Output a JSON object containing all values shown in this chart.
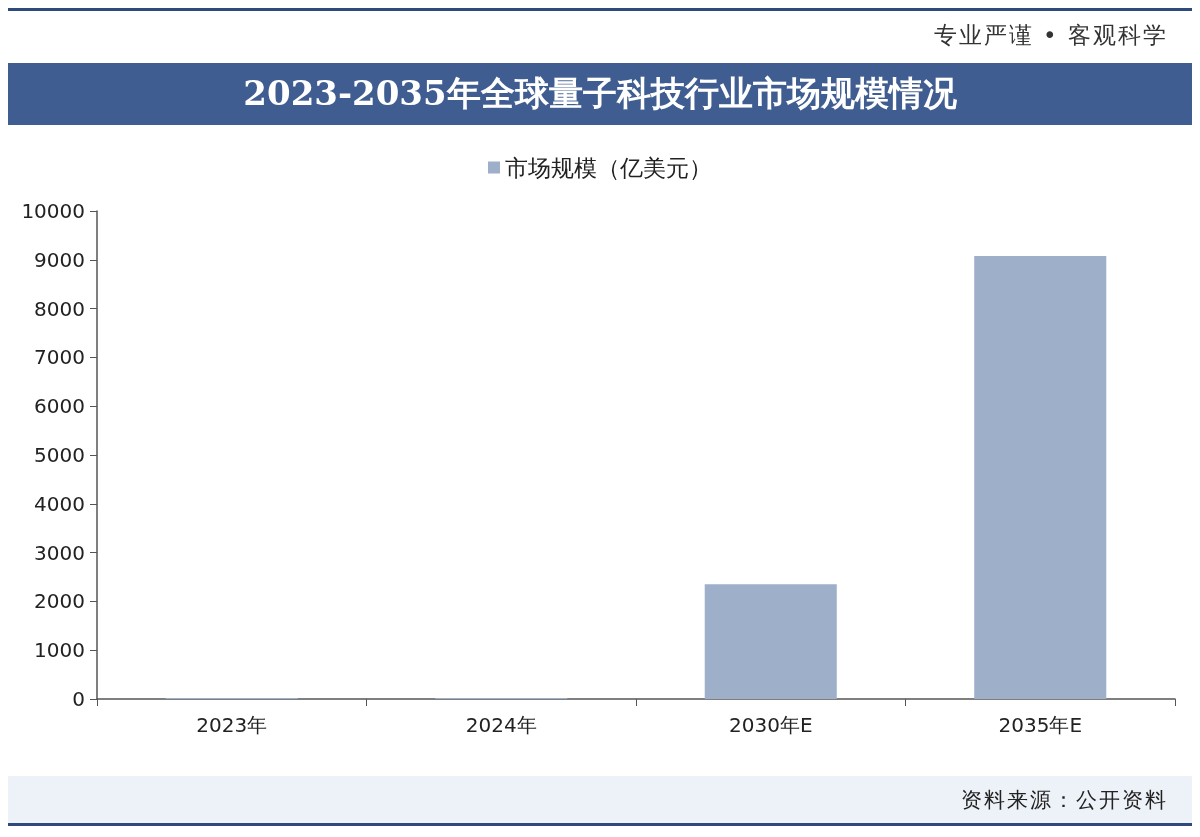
{
  "chart_data": {
    "type": "bar",
    "title": "2023-2035年全球量子科技行业市场规模情况",
    "categories": [
      "2023年",
      "2024年",
      "2030年E",
      "2035年E"
    ],
    "series": [
      {
        "name": "市场规模（亿美元）",
        "color": "#9eafca",
        "values": [
          20,
          20,
          2350,
          9080
        ]
      }
    ],
    "ylim": [
      0,
      10000
    ],
    "yticks": [
      0,
      1000,
      2000,
      3000,
      4000,
      5000,
      6000,
      7000,
      8000,
      9000,
      10000
    ],
    "legend": "top",
    "annotations": [
      "专业严谨 • 客观科学",
      "资料来源：公开资料"
    ]
  }
}
